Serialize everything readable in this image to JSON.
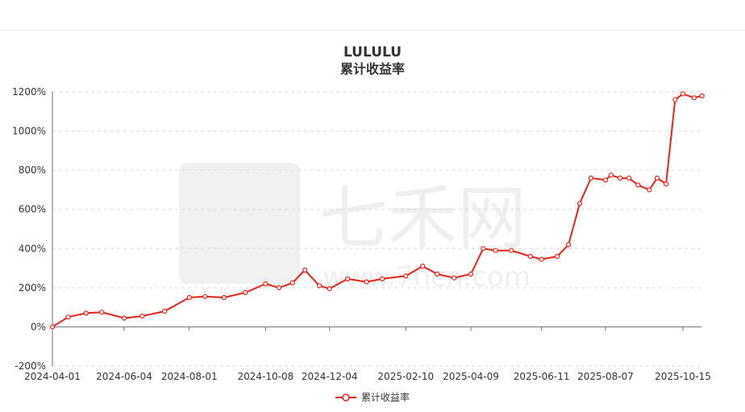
{
  "chart_data": {
    "type": "line",
    "title": "LULULU",
    "subtitle": "累计收益率",
    "xlabel": "",
    "ylabel": "",
    "x_ticks": [
      "2024-04-01",
      "2024-06-04",
      "2024-08-01",
      "2024-10-08",
      "2024-12-04",
      "2025-02-10",
      "2025-04-09",
      "2025-06-11",
      "2025-08-07",
      "2025-10-15"
    ],
    "y_ticks": [
      "-200%",
      "0%",
      "200%",
      "400%",
      "600%",
      "800%",
      "1000%",
      "1200%"
    ],
    "ylim": [
      -200,
      1200
    ],
    "grid": "horizontal-dashed",
    "legend": "bottom-center",
    "series": [
      {
        "name": "累计收益率",
        "color": "#e8231b",
        "x": [
          "2024-04-01",
          "2024-04-15",
          "2024-05-01",
          "2024-05-15",
          "2024-06-04",
          "2024-06-20",
          "2024-07-10",
          "2024-08-01",
          "2024-08-15",
          "2024-09-01",
          "2024-09-20",
          "2024-10-08",
          "2024-10-20",
          "2024-11-01",
          "2024-11-12",
          "2024-11-25",
          "2024-12-04",
          "2024-12-20",
          "2025-01-06",
          "2025-01-20",
          "2025-02-10",
          "2025-02-25",
          "2025-03-10",
          "2025-03-25",
          "2025-04-09",
          "2025-04-20",
          "2025-05-01",
          "2025-05-15",
          "2025-06-01",
          "2025-06-11",
          "2025-06-25",
          "2025-07-05",
          "2025-07-15",
          "2025-07-25",
          "2025-08-07",
          "2025-08-12",
          "2025-08-20",
          "2025-08-28",
          "2025-09-05",
          "2025-09-15",
          "2025-09-22",
          "2025-09-30",
          "2025-10-08",
          "2025-10-15",
          "2025-10-25",
          "2025-11-01"
        ],
        "values": [
          0,
          50,
          70,
          75,
          45,
          55,
          80,
          150,
          155,
          150,
          175,
          220,
          200,
          225,
          290,
          210,
          195,
          245,
          230,
          245,
          260,
          310,
          270,
          250,
          270,
          400,
          390,
          390,
          360,
          345,
          360,
          420,
          630,
          760,
          750,
          775,
          760,
          760,
          725,
          700,
          760,
          730,
          1160,
          1190,
          1170,
          1180
        ]
      }
    ]
  },
  "legend": {
    "label": "累计收益率"
  },
  "watermark": "七禾网 www.7hcn.com"
}
